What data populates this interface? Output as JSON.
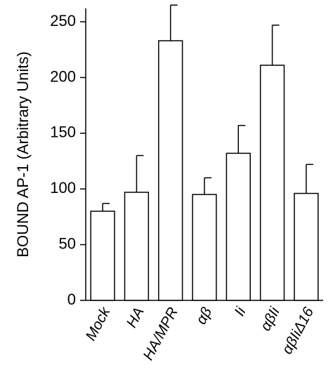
{
  "chart_data": {
    "type": "bar",
    "ylabel": "BOUND AP-1 (Arbitrary Units)",
    "categories": [
      "Mock",
      "HA",
      "HA/MPR",
      "αβ",
      "Ii",
      "αβIi",
      "αβIiΔ16"
    ],
    "values": [
      80,
      97,
      233,
      95,
      132,
      211,
      96
    ],
    "errors": [
      7,
      33,
      32,
      15,
      25,
      36,
      26
    ],
    "color": "#ffffff",
    "ylim": [
      0,
      262
    ],
    "yticks": [
      0,
      50,
      100,
      150,
      200,
      250
    ],
    "grid": false
  }
}
